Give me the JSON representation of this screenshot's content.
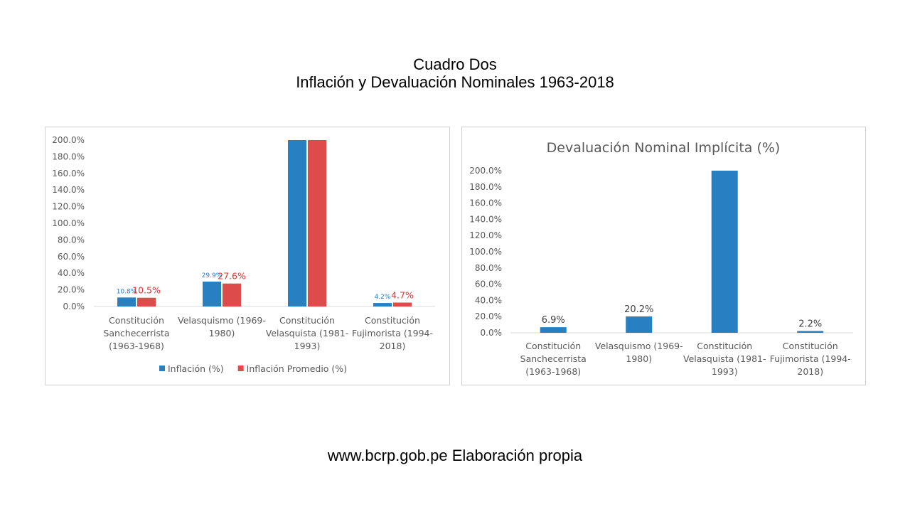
{
  "page": {
    "title_line1": "Cuadro Dos",
    "title_line2": "Inflación y Devaluación Nominales 1963-2018",
    "footer": "www.bcrp.gob.pe Elaboración propia"
  },
  "chart_data": [
    {
      "type": "bar",
      "title": "",
      "categories": [
        [
          "Constitución",
          "Sanchecerrista",
          "(1963-1968)"
        ],
        [
          "Velasquismo (1969-",
          "1980)"
        ],
        [
          "Constitución",
          "Velasquista (1981-",
          "1993)"
        ],
        [
          "Constitución",
          "Fujimorista (1994-",
          "2018)"
        ]
      ],
      "series": [
        {
          "name": "Inflación (%)",
          "color": "#2680c2",
          "values": [
            10.8,
            29.9,
            200,
            4.2
          ],
          "labels": [
            "10.8%",
            "29.9%",
            "",
            "4.2%"
          ]
        },
        {
          "name": "Inflación Promedio (%)",
          "color": "#dd4b4b",
          "values": [
            10.5,
            27.6,
            200,
            4.7
          ],
          "labels": [
            "10.5%",
            "27.6%",
            "",
            "4.7%"
          ]
        }
      ],
      "ylim": [
        0,
        200
      ],
      "yticks": [
        "0.0%",
        "20.0%",
        "40.0%",
        "60.0%",
        "80.0%",
        "100.0%",
        "120.0%",
        "140.0%",
        "160.0%",
        "180.0%",
        "200.0%"
      ],
      "legend": "bottom",
      "grid": false
    },
    {
      "type": "bar",
      "title": "Devaluación Nominal Implícita (%)",
      "categories": [
        [
          "Constitución",
          "Sanchecerrista",
          "(1963-1968)"
        ],
        [
          "Velasquismo (1969-",
          "1980)"
        ],
        [
          "Constitución",
          "Velasquista (1981-",
          "1993)"
        ],
        [
          "Constitución",
          "Fujimorista (1994-",
          "2018)"
        ]
      ],
      "series": [
        {
          "color": "#2680c2",
          "values": [
            6.9,
            20.2,
            200,
            2.2
          ],
          "labels": [
            "6.9%",
            "20.2%",
            "",
            "2.2%"
          ]
        }
      ],
      "ylim": [
        0,
        200
      ],
      "yticks": [
        "0.0%",
        "20.0%",
        "40.0%",
        "60.0%",
        "80.0%",
        "100.0%",
        "120.0%",
        "140.0%",
        "160.0%",
        "180.0%",
        "200.0%"
      ],
      "legend": "none",
      "grid": false
    }
  ]
}
